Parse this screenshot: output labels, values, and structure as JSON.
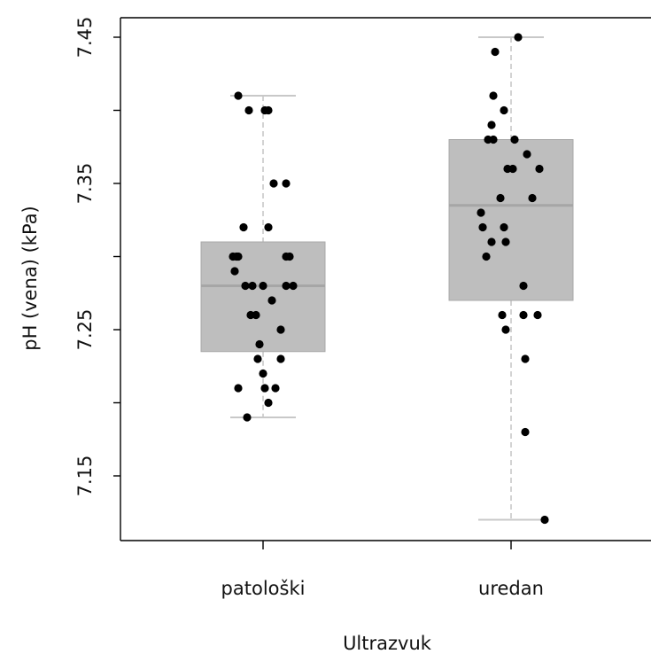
{
  "chart_data": {
    "type": "boxplot",
    "xlabel": "Ultrazvuk",
    "ylabel": "pH (vena) (kPa)",
    "ylim": [
      7.115,
      7.458
    ],
    "yticks": [
      7.15,
      7.2,
      7.25,
      7.3,
      7.35,
      7.4,
      7.45
    ],
    "ytick_labels": [
      "7.15",
      "",
      "7.25",
      "",
      "7.35",
      "",
      "7.45"
    ],
    "categories": [
      "patološki",
      "uredan"
    ],
    "box_color": "#bebebe",
    "median_color": "#a6a6a6",
    "whisker_color": "#c8c8c8",
    "point_color": "#000000",
    "boxes": [
      {
        "category": "patološki",
        "min": 7.19,
        "q1": 7.235,
        "median": 7.28,
        "q3": 7.31,
        "max": 7.41
      },
      {
        "category": "uredan",
        "min": 7.12,
        "q1": 7.27,
        "median": 7.335,
        "q3": 7.38,
        "max": 7.45
      }
    ],
    "points": [
      [
        {
          "x": -0.14,
          "y": 7.41
        },
        {
          "x": -0.08,
          "y": 7.4
        },
        {
          "x": 0.01,
          "y": 7.4
        },
        {
          "x": 0.03,
          "y": 7.4
        },
        {
          "x": 0.06,
          "y": 7.35
        },
        {
          "x": 0.13,
          "y": 7.35
        },
        {
          "x": -0.11,
          "y": 7.32
        },
        {
          "x": 0.03,
          "y": 7.32
        },
        {
          "x": -0.17,
          "y": 7.3
        },
        {
          "x": -0.15,
          "y": 7.3
        },
        {
          "x": -0.14,
          "y": 7.3
        },
        {
          "x": 0.13,
          "y": 7.3
        },
        {
          "x": 0.15,
          "y": 7.3
        },
        {
          "x": -0.16,
          "y": 7.29
        },
        {
          "x": -0.1,
          "y": 7.28
        },
        {
          "x": -0.06,
          "y": 7.28
        },
        {
          "x": 0.0,
          "y": 7.28
        },
        {
          "x": 0.13,
          "y": 7.28
        },
        {
          "x": 0.17,
          "y": 7.28
        },
        {
          "x": 0.05,
          "y": 7.27
        },
        {
          "x": -0.07,
          "y": 7.26
        },
        {
          "x": -0.04,
          "y": 7.26
        },
        {
          "x": 0.1,
          "y": 7.25
        },
        {
          "x": -0.02,
          "y": 7.24
        },
        {
          "x": -0.03,
          "y": 7.23
        },
        {
          "x": 0.1,
          "y": 7.23
        },
        {
          "x": 0.0,
          "y": 7.22
        },
        {
          "x": -0.14,
          "y": 7.21
        },
        {
          "x": 0.01,
          "y": 7.21
        },
        {
          "x": 0.07,
          "y": 7.21
        },
        {
          "x": 0.03,
          "y": 7.2
        },
        {
          "x": -0.09,
          "y": 7.19
        }
      ],
      [
        {
          "x": 0.04,
          "y": 7.45
        },
        {
          "x": -0.09,
          "y": 7.44
        },
        {
          "x": -0.1,
          "y": 7.41
        },
        {
          "x": -0.04,
          "y": 7.4
        },
        {
          "x": -0.11,
          "y": 7.39
        },
        {
          "x": -0.13,
          "y": 7.38
        },
        {
          "x": -0.1,
          "y": 7.38
        },
        {
          "x": 0.02,
          "y": 7.38
        },
        {
          "x": 0.09,
          "y": 7.37
        },
        {
          "x": -0.02,
          "y": 7.36
        },
        {
          "x": 0.01,
          "y": 7.36
        },
        {
          "x": 0.16,
          "y": 7.36
        },
        {
          "x": -0.06,
          "y": 7.34
        },
        {
          "x": 0.12,
          "y": 7.34
        },
        {
          "x": -0.17,
          "y": 7.33
        },
        {
          "x": -0.16,
          "y": 7.32
        },
        {
          "x": -0.04,
          "y": 7.32
        },
        {
          "x": -0.11,
          "y": 7.31
        },
        {
          "x": -0.03,
          "y": 7.31
        },
        {
          "x": -0.14,
          "y": 7.3
        },
        {
          "x": 0.07,
          "y": 7.28
        },
        {
          "x": -0.05,
          "y": 7.26
        },
        {
          "x": 0.07,
          "y": 7.26
        },
        {
          "x": 0.15,
          "y": 7.26
        },
        {
          "x": -0.03,
          "y": 7.25
        },
        {
          "x": 0.08,
          "y": 7.23
        },
        {
          "x": 0.08,
          "y": 7.18
        },
        {
          "x": 0.19,
          "y": 7.12
        }
      ]
    ]
  }
}
